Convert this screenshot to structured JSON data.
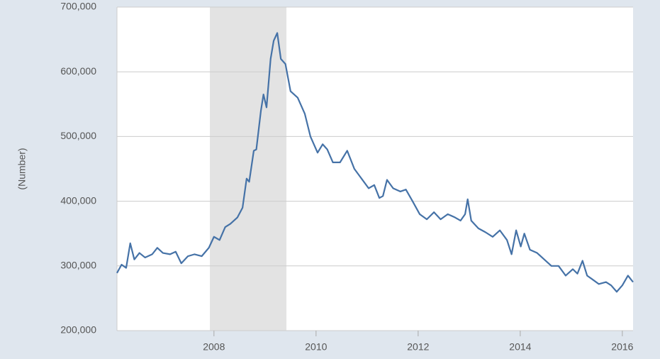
{
  "chart_data": {
    "type": "line",
    "y_label": "(Number)",
    "color": "#4572a7",
    "recession_color": "#e3e3e3",
    "recessions": [
      [
        2007.92,
        2009.42
      ]
    ],
    "xlim": [
      2006.1,
      2016.21
    ],
    "xticks": [
      2008,
      2010,
      2012,
      2014,
      2016
    ],
    "ylim": [
      200000,
      700000
    ],
    "yticks": [
      {
        "value": 200000,
        "label": "200,000"
      },
      {
        "value": 300000,
        "label": "300,000"
      },
      {
        "value": 400000,
        "label": "400,000"
      },
      {
        "value": 500000,
        "label": "500,000"
      },
      {
        "value": 600000,
        "label": "600,000"
      },
      {
        "value": 700000,
        "label": "700,000"
      }
    ],
    "grid": true,
    "x": [
      2006.1,
      2006.19,
      2006.28,
      2006.36,
      2006.44,
      2006.54,
      2006.65,
      2006.79,
      2006.89,
      2007.0,
      2007.14,
      2007.25,
      2007.36,
      2007.49,
      2007.62,
      2007.76,
      2007.9,
      2008.0,
      2008.11,
      2008.22,
      2008.32,
      2008.46,
      2008.56,
      2008.64,
      2008.69,
      2008.78,
      2008.83,
      2008.92,
      2008.97,
      2009.03,
      2009.11,
      2009.17,
      2009.24,
      2009.31,
      2009.4,
      2009.5,
      2009.64,
      2009.78,
      2009.89,
      2010.03,
      2010.13,
      2010.22,
      2010.33,
      2010.47,
      2010.61,
      2010.75,
      2010.89,
      2011.03,
      2011.14,
      2011.24,
      2011.31,
      2011.39,
      2011.51,
      2011.65,
      2011.76,
      2011.89,
      2012.03,
      2012.17,
      2012.31,
      2012.44,
      2012.58,
      2012.72,
      2012.83,
      2012.92,
      2012.97,
      2013.04,
      2013.18,
      2013.32,
      2013.46,
      2013.6,
      2013.74,
      2013.83,
      2013.92,
      2014.01,
      2014.08,
      2014.19,
      2014.33,
      2014.47,
      2014.61,
      2014.75,
      2014.89,
      2015.03,
      2015.12,
      2015.22,
      2015.31,
      2015.4,
      2015.54,
      2015.68,
      2015.78,
      2015.89,
      2016.0,
      2016.11,
      2016.21
    ],
    "values": [
      289000,
      302000,
      297000,
      335000,
      310000,
      320000,
      313000,
      318000,
      328000,
      320000,
      318000,
      322000,
      304000,
      315000,
      318000,
      315000,
      328000,
      345000,
      340000,
      360000,
      365000,
      375000,
      390000,
      435000,
      430000,
      478000,
      480000,
      540000,
      565000,
      545000,
      620000,
      648000,
      660000,
      620000,
      612000,
      570000,
      560000,
      535000,
      500000,
      475000,
      488000,
      480000,
      460000,
      460000,
      478000,
      450000,
      435000,
      420000,
      425000,
      405000,
      408000,
      433000,
      420000,
      415000,
      418000,
      400000,
      380000,
      372000,
      383000,
      372000,
      380000,
      375000,
      370000,
      380000,
      403000,
      370000,
      358000,
      352000,
      345000,
      355000,
      340000,
      318000,
      355000,
      330000,
      350000,
      325000,
      320000,
      310000,
      300000,
      300000,
      285000,
      295000,
      288000,
      308000,
      285000,
      280000,
      272000,
      275000,
      270000,
      260000,
      270000,
      285000,
      275000
    ]
  }
}
